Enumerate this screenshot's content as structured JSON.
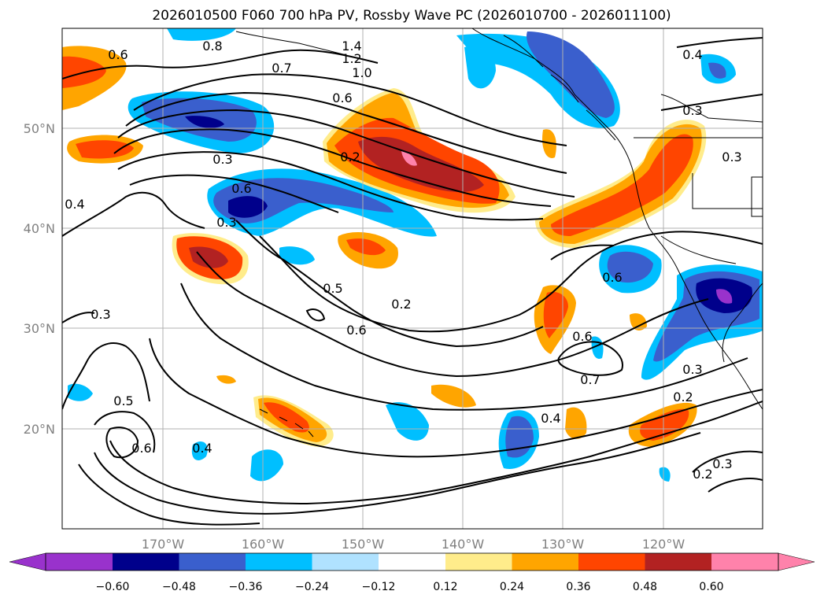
{
  "title": "2026010500 F060 700 hPa PV, Rossby Wave PC (2026010700 - 2026011100)",
  "lon_ticks": [
    "170°W",
    "160°W",
    "150°W",
    "140°W",
    "130°W",
    "120°W"
  ],
  "lat_ticks": [
    "50°N",
    "40°N",
    "30°N",
    "20°N"
  ],
  "colorbar": {
    "ticks": [
      "−0.60",
      "−0.48",
      "−0.36",
      "−0.24",
      "−0.12",
      "0.12",
      "0.24",
      "0.36",
      "0.48",
      "0.60"
    ],
    "under_color": "#9932cc",
    "colors": [
      "#9932cc",
      "#00008b",
      "#3a5fcd",
      "#00bfff",
      "#b0e2ff",
      "#ffffff",
      "#ffec8b",
      "#ffa500",
      "#ff4500",
      "#b22222",
      "#ff82ab"
    ],
    "over_color": "#ff82ab"
  },
  "contour_labels": [
    "1.4",
    "1.2",
    "1.0",
    "0.8",
    "0.7",
    "0.6",
    "0.6",
    "0.3",
    "0.2",
    "0.6",
    "0.3",
    "0.5",
    "0.6",
    "0.2",
    "0.6",
    "0.7",
    "0.4",
    "0.3",
    "0.2",
    "0.5",
    "0.6",
    "0.4",
    "0.3",
    "0.4",
    "0.3",
    "0.6",
    "0.4",
    "0.3",
    "0.2",
    "0.3"
  ]
}
